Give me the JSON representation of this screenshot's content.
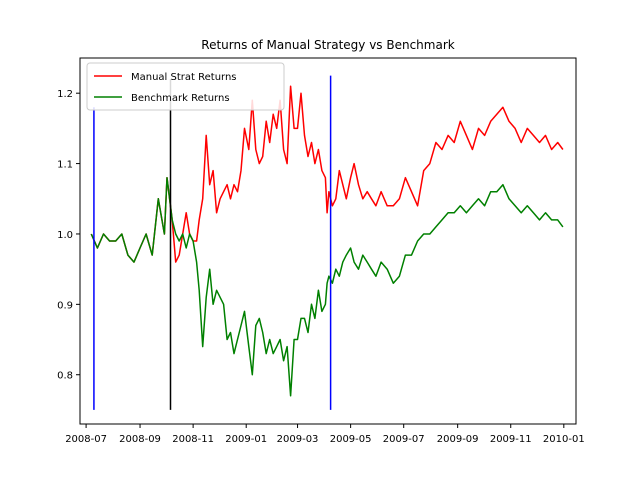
{
  "chart_data": {
    "type": "line",
    "title": "Returns of Manual Strategy vs Benchmark",
    "xlabel": "",
    "ylabel": "",
    "xlim": [
      "2008-06-24",
      "2010-01-15"
    ],
    "ylim": [
      0.73,
      1.25
    ],
    "x_ticks": [
      {
        "date": "2008-07-01",
        "label": "2008-07"
      },
      {
        "date": "2008-09-01",
        "label": "2008-09"
      },
      {
        "date": "2008-11-01",
        "label": "2008-11"
      },
      {
        "date": "2009-01-01",
        "label": "2009-01"
      },
      {
        "date": "2009-03-01",
        "label": "2009-03"
      },
      {
        "date": "2009-05-01",
        "label": "2009-05"
      },
      {
        "date": "2009-07-01",
        "label": "2009-07"
      },
      {
        "date": "2009-09-01",
        "label": "2009-09"
      },
      {
        "date": "2009-11-01",
        "label": "2009-11"
      },
      {
        "date": "2010-01-01",
        "label": "2010-01"
      }
    ],
    "y_ticks": [
      {
        "value": 0.8,
        "label": "0.8"
      },
      {
        "value": 0.9,
        "label": "0.9"
      },
      {
        "value": 1.0,
        "label": "1.0"
      },
      {
        "value": 1.1,
        "label": "1.1"
      },
      {
        "value": 1.2,
        "label": "1.2"
      }
    ],
    "legend": {
      "position": "top-left"
    },
    "series": [
      {
        "name": "Manual Strat Returns",
        "color": "#ff0000",
        "x": [
          "2008-07-07",
          "2008-07-14",
          "2008-07-21",
          "2008-07-28",
          "2008-08-04",
          "2008-08-11",
          "2008-08-18",
          "2008-08-25",
          "2008-09-01",
          "2008-09-08",
          "2008-09-15",
          "2008-09-22",
          "2008-09-29",
          "2008-10-02",
          "2008-10-08",
          "2008-10-12",
          "2008-10-16",
          "2008-10-20",
          "2008-10-24",
          "2008-10-28",
          "2008-11-01",
          "2008-11-05",
          "2008-11-08",
          "2008-11-12",
          "2008-11-16",
          "2008-11-20",
          "2008-11-24",
          "2008-11-28",
          "2008-12-02",
          "2008-12-06",
          "2008-12-10",
          "2008-12-14",
          "2008-12-18",
          "2008-12-22",
          "2008-12-26",
          "2008-12-30",
          "2009-01-04",
          "2009-01-08",
          "2009-01-12",
          "2009-01-16",
          "2009-01-20",
          "2009-01-24",
          "2009-01-28",
          "2009-02-01",
          "2009-02-05",
          "2009-02-09",
          "2009-02-13",
          "2009-02-17",
          "2009-02-21",
          "2009-02-25",
          "2009-03-01",
          "2009-03-05",
          "2009-03-09",
          "2009-03-13",
          "2009-03-17",
          "2009-03-21",
          "2009-03-25",
          "2009-03-29",
          "2009-04-02",
          "2009-04-04",
          "2009-04-06",
          "2009-04-10",
          "2009-04-14",
          "2009-04-18",
          "2009-04-22",
          "2009-04-26",
          "2009-05-01",
          "2009-05-05",
          "2009-05-10",
          "2009-05-15",
          "2009-05-20",
          "2009-05-25",
          "2009-05-30",
          "2009-06-05",
          "2009-06-12",
          "2009-06-19",
          "2009-06-26",
          "2009-07-03",
          "2009-07-10",
          "2009-07-17",
          "2009-07-24",
          "2009-07-31",
          "2009-08-07",
          "2009-08-14",
          "2009-08-21",
          "2009-08-28",
          "2009-09-04",
          "2009-09-11",
          "2009-09-18",
          "2009-09-25",
          "2009-10-02",
          "2009-10-09",
          "2009-10-16",
          "2009-10-23",
          "2009-10-30",
          "2009-11-06",
          "2009-11-13",
          "2009-11-20",
          "2009-11-27",
          "2009-12-04",
          "2009-12-11",
          "2009-12-18",
          "2009-12-25",
          "2009-12-31"
        ],
        "values": [
          1.0,
          0.98,
          1.0,
          0.99,
          0.99,
          1.0,
          0.97,
          0.96,
          0.98,
          1.0,
          0.97,
          1.05,
          1.0,
          1.08,
          1.02,
          0.96,
          0.97,
          1.0,
          1.03,
          1.0,
          0.99,
          0.99,
          1.02,
          1.05,
          1.14,
          1.07,
          1.09,
          1.03,
          1.05,
          1.06,
          1.07,
          1.05,
          1.07,
          1.06,
          1.09,
          1.15,
          1.12,
          1.19,
          1.12,
          1.1,
          1.11,
          1.16,
          1.13,
          1.17,
          1.15,
          1.19,
          1.12,
          1.1,
          1.21,
          1.15,
          1.15,
          1.2,
          1.14,
          1.11,
          1.13,
          1.1,
          1.12,
          1.09,
          1.08,
          1.03,
          1.06,
          1.04,
          1.05,
          1.09,
          1.07,
          1.05,
          1.08,
          1.1,
          1.07,
          1.05,
          1.06,
          1.05,
          1.04,
          1.06,
          1.04,
          1.04,
          1.05,
          1.08,
          1.06,
          1.04,
          1.09,
          1.1,
          1.13,
          1.12,
          1.14,
          1.13,
          1.16,
          1.14,
          1.12,
          1.15,
          1.14,
          1.16,
          1.17,
          1.18,
          1.16,
          1.15,
          1.13,
          1.15,
          1.14,
          1.13,
          1.14,
          1.12,
          1.13,
          1.12
        ]
      },
      {
        "name": "Benchmark Returns",
        "color": "#008000",
        "x": [
          "2008-07-07",
          "2008-07-14",
          "2008-07-21",
          "2008-07-28",
          "2008-08-04",
          "2008-08-11",
          "2008-08-18",
          "2008-08-25",
          "2008-09-01",
          "2008-09-08",
          "2008-09-15",
          "2008-09-22",
          "2008-09-29",
          "2008-10-02",
          "2008-10-08",
          "2008-10-12",
          "2008-10-16",
          "2008-10-20",
          "2008-10-24",
          "2008-10-28",
          "2008-11-01",
          "2008-11-05",
          "2008-11-08",
          "2008-11-12",
          "2008-11-16",
          "2008-11-20",
          "2008-11-24",
          "2008-11-28",
          "2008-12-02",
          "2008-12-06",
          "2008-12-10",
          "2008-12-14",
          "2008-12-18",
          "2008-12-22",
          "2008-12-26",
          "2008-12-30",
          "2009-01-04",
          "2009-01-08",
          "2009-01-12",
          "2009-01-16",
          "2009-01-20",
          "2009-01-24",
          "2009-01-28",
          "2009-02-01",
          "2009-02-05",
          "2009-02-09",
          "2009-02-13",
          "2009-02-17",
          "2009-02-21",
          "2009-02-25",
          "2009-03-01",
          "2009-03-05",
          "2009-03-09",
          "2009-03-13",
          "2009-03-17",
          "2009-03-21",
          "2009-03-25",
          "2009-03-29",
          "2009-04-02",
          "2009-04-04",
          "2009-04-06",
          "2009-04-10",
          "2009-04-14",
          "2009-04-18",
          "2009-04-22",
          "2009-04-26",
          "2009-05-01",
          "2009-05-05",
          "2009-05-10",
          "2009-05-15",
          "2009-05-20",
          "2009-05-25",
          "2009-05-30",
          "2009-06-05",
          "2009-06-12",
          "2009-06-19",
          "2009-06-26",
          "2009-07-03",
          "2009-07-10",
          "2009-07-17",
          "2009-07-24",
          "2009-07-31",
          "2009-08-07",
          "2009-08-14",
          "2009-08-21",
          "2009-08-28",
          "2009-09-04",
          "2009-09-11",
          "2009-09-18",
          "2009-09-25",
          "2009-10-02",
          "2009-10-09",
          "2009-10-16",
          "2009-10-23",
          "2009-10-30",
          "2009-11-06",
          "2009-11-13",
          "2009-11-20",
          "2009-11-27",
          "2009-12-04",
          "2009-12-11",
          "2009-12-18",
          "2009-12-25",
          "2009-12-31"
        ],
        "values": [
          1.0,
          0.98,
          1.0,
          0.99,
          0.99,
          1.0,
          0.97,
          0.96,
          0.98,
          1.0,
          0.97,
          1.05,
          1.0,
          1.08,
          1.02,
          1.0,
          0.99,
          1.0,
          0.98,
          1.0,
          0.99,
          0.96,
          0.92,
          0.84,
          0.91,
          0.95,
          0.9,
          0.92,
          0.91,
          0.9,
          0.85,
          0.86,
          0.83,
          0.85,
          0.87,
          0.89,
          0.84,
          0.8,
          0.87,
          0.88,
          0.86,
          0.83,
          0.85,
          0.83,
          0.84,
          0.85,
          0.82,
          0.84,
          0.77,
          0.85,
          0.85,
          0.88,
          0.88,
          0.86,
          0.9,
          0.88,
          0.92,
          0.89,
          0.9,
          0.93,
          0.94,
          0.93,
          0.95,
          0.94,
          0.96,
          0.97,
          0.98,
          0.96,
          0.95,
          0.97,
          0.96,
          0.95,
          0.94,
          0.96,
          0.95,
          0.93,
          0.94,
          0.97,
          0.97,
          0.99,
          1.0,
          1.0,
          1.01,
          1.02,
          1.03,
          1.03,
          1.04,
          1.03,
          1.04,
          1.05,
          1.04,
          1.06,
          1.06,
          1.07,
          1.05,
          1.04,
          1.03,
          1.04,
          1.03,
          1.02,
          1.03,
          1.02,
          1.02,
          1.01
        ]
      }
    ],
    "vlines": [
      {
        "date": "2008-07-10",
        "ymin": 0.75,
        "ymax": 1.18,
        "color": "#0000ff"
      },
      {
        "date": "2008-10-06",
        "ymin": 0.75,
        "ymax": 1.22,
        "color": "#000000"
      },
      {
        "date": "2009-04-08",
        "ymin": 0.75,
        "ymax": 1.225,
        "color": "#0000ff"
      }
    ]
  }
}
